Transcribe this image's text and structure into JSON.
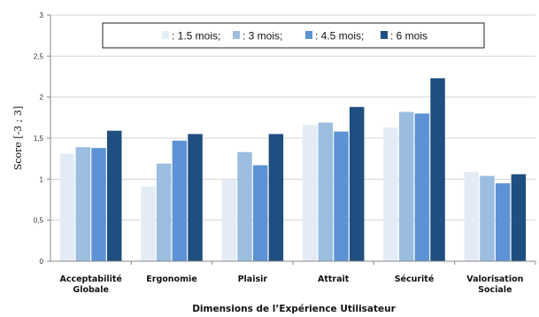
{
  "chart_data": {
    "type": "bar",
    "title": "",
    "xlabel": "Dimensions de l’Expérience Utilisateur",
    "ylabel": "Score  [-3 ; 3]",
    "ylim": [
      0,
      3
    ],
    "yticks": [
      "0",
      "0,5",
      "1",
      "1,5",
      "2",
      "2,5",
      "3"
    ],
    "ytick_values": [
      0,
      0.5,
      1,
      1.5,
      2,
      2.5,
      3
    ],
    "grid": true,
    "legend_position": "top",
    "categories": [
      [
        "Acceptabilité",
        "Globale"
      ],
      [
        "Ergonomie"
      ],
      [
        "Plaisir"
      ],
      [
        "Attrait"
      ],
      [
        "Sécurité"
      ],
      [
        "Valorisation",
        "Sociale"
      ]
    ],
    "series": [
      {
        "name": "1.5 mois",
        "legend_text": ": 1.5 mois;",
        "color": "#e3ecf6",
        "values": [
          1.31,
          0.91,
          0.99,
          1.66,
          1.63,
          1.09
        ]
      },
      {
        "name": "3 mois",
        "legend_text": ": 3 mois;",
        "color": "#9bbde0",
        "values": [
          1.39,
          1.19,
          1.33,
          1.69,
          1.82,
          1.04
        ]
      },
      {
        "name": "4.5 mois",
        "legend_text": ": 4.5 mois;",
        "color": "#5d93d4",
        "values": [
          1.38,
          1.47,
          1.17,
          1.58,
          1.8,
          0.95
        ]
      },
      {
        "name": "6 mois",
        "legend_text": ": 6 mois",
        "color": "#1f4e80",
        "values": [
          1.59,
          1.55,
          1.55,
          1.88,
          2.23,
          1.06
        ]
      }
    ]
  }
}
